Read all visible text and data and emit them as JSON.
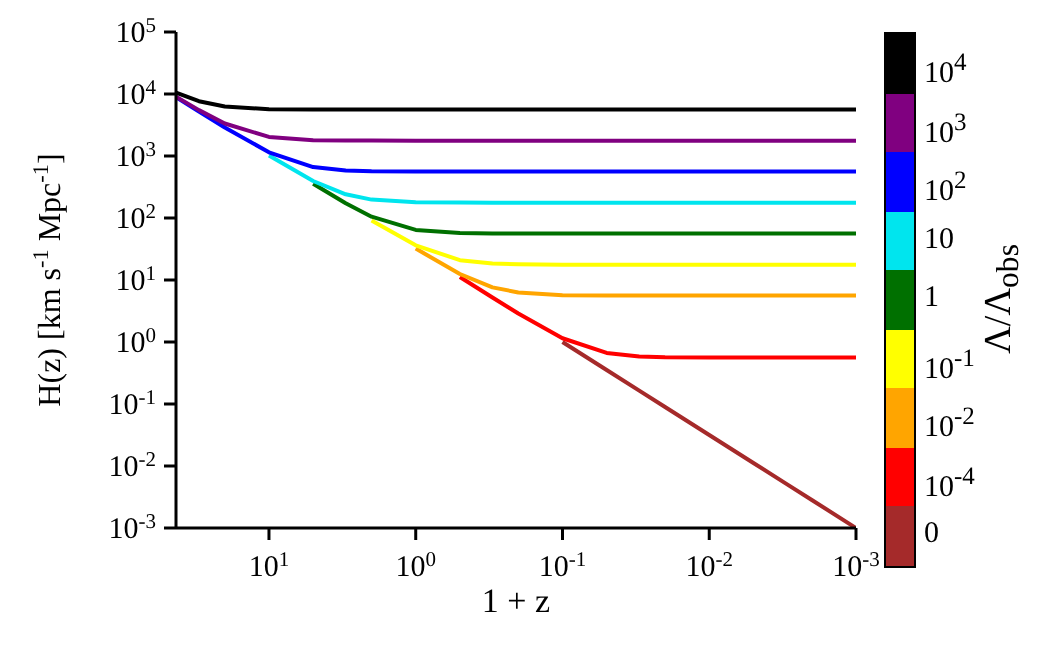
{
  "chart_data": {
    "type": "line",
    "xlabel": "1 + z",
    "ylabel": "H(z) [km s$^{-1}$ Mpc$^{-1}$]",
    "legend_title": "Λ/Λ$_{obs}$",
    "log": "xy",
    "grid": false,
    "legend": "right",
    "marker": "none",
    "line_style": "solid",
    "x": [
      43,
      30,
      20,
      10,
      5,
      3,
      2,
      1,
      0.5,
      0.3,
      0.2,
      0.1,
      0.05,
      0.03,
      0.02,
      0.01,
      0.005,
      0.003,
      0.002,
      0.001
    ],
    "xlim": [
      43,
      0.001
    ],
    "xticks": [
      {
        "value": 10,
        "label": "10$^{1}$"
      },
      {
        "value": 1,
        "label": "10$^{0}$"
      },
      {
        "value": 0.1,
        "label": "10$^{-1}$"
      },
      {
        "value": 0.01,
        "label": "10$^{-2}$"
      },
      {
        "value": 0.001,
        "label": "10$^{-3}$"
      }
    ],
    "ylim": [
      0.001,
      100000
    ],
    "yticks": [
      {
        "value": 0.001,
        "label": "10$^{-3}$"
      },
      {
        "value": 0.01,
        "label": "10$^{-2}$"
      },
      {
        "value": 0.1,
        "label": "10$^{-1}$"
      },
      {
        "value": 1,
        "label": "10$^{0}$"
      },
      {
        "value": 10,
        "label": "10$^{1}$"
      },
      {
        "value": 100,
        "label": "10$^{2}$"
      },
      {
        "value": 1000,
        "label": "10$^{3}$"
      },
      {
        "value": 10000,
        "label": "10$^{4}$"
      },
      {
        "value": 100000,
        "label": "10$^{5}$"
      }
    ],
    "series": [
      {
        "name": "10$^{4}$",
        "color": "#000000",
        "values": [
          10500,
          7640,
          6280,
          5690,
          5610,
          5600,
          5600,
          5600,
          5600,
          5600,
          5600,
          5600,
          5600,
          5600,
          5600,
          5600,
          5600,
          5600,
          5600,
          5600
        ]
      },
      {
        "name": "10$^{3}$",
        "color": "#800080",
        "values": [
          9070,
          5490,
          3340,
          2030,
          1800,
          1778,
          1772,
          1770,
          1770,
          1770,
          1770,
          1770,
          1770,
          1770,
          1770,
          1770,
          1770,
          1770,
          1770,
          1770
        ]
      },
      {
        "name": "10$^{2}$",
        "color": "#0000ff",
        "values": [
          8920,
          5230,
          2885,
          1146,
          662,
          584,
          567,
          561,
          560,
          560,
          560,
          560,
          560,
          560,
          560,
          560,
          560,
          560,
          560,
          560
        ]
      },
      {
        "name": "10",
        "color": "#00e5ee",
        "values": [
          null,
          null,
          null,
          1016,
          395,
          241,
          198,
          180,
          177.4,
          177,
          177,
          177,
          177,
          177,
          177,
          177,
          177,
          177,
          177,
          177
        ]
      },
      {
        "name": "1",
        "color": "#007000",
        "values": [
          null,
          null,
          null,
          null,
          357,
          173,
          105,
          64.3,
          57.1,
          56.2,
          56.1,
          56,
          56,
          56,
          56,
          56,
          56,
          56,
          56,
          56
        ]
      },
      {
        "name": "10$^{-1}$",
        "color": "#ffff00",
        "values": [
          null,
          null,
          null,
          null,
          null,
          null,
          91.1,
          36.2,
          20.9,
          18.4,
          17.9,
          17.7,
          17.7,
          17.7,
          17.7,
          17.7,
          17.7,
          17.7,
          17.7,
          17.7
        ]
      },
      {
        "name": "10$^{-2}$",
        "color": "#ffa500",
        "values": [
          null,
          null,
          null,
          null,
          null,
          null,
          null,
          32.1,
          12.5,
          7.6,
          6.3,
          5.69,
          5.61,
          5.6,
          5.6,
          5.6,
          5.6,
          5.6,
          5.6,
          5.6
        ]
      },
      {
        "name": "10$^{-4}$",
        "color": "#ff0000",
        "values": [
          null,
          null,
          null,
          null,
          null,
          null,
          null,
          null,
          11.2,
          5.23,
          2.88,
          1.15,
          0.666,
          0.584,
          0.567,
          0.561,
          0.56,
          0.56,
          0.56,
          0.56
        ]
      },
      {
        "name": "0",
        "color": "#a52a2a",
        "values": [
          null,
          null,
          null,
          null,
          null,
          null,
          null,
          null,
          null,
          null,
          null,
          1.0,
          0.354,
          0.164,
          0.0894,
          0.0316,
          0.0112,
          0.0052,
          0.00283,
          0.001
        ]
      }
    ]
  }
}
